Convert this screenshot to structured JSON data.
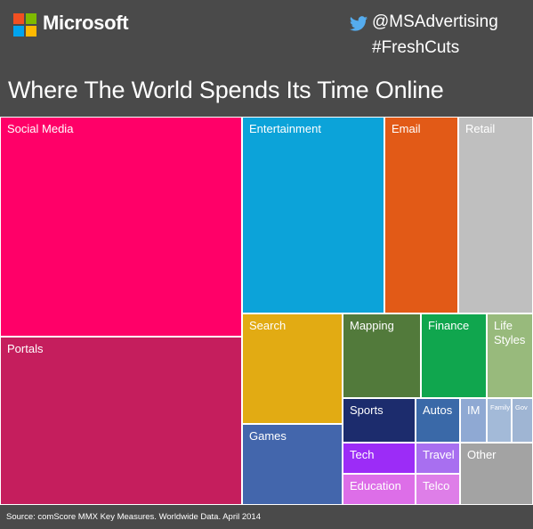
{
  "header": {
    "brand": "Microsoft",
    "twitter_handle": "@MSAdvertising",
    "hashtag": "#FreshCuts"
  },
  "colors": {
    "background": "#4a4a4a",
    "logo": [
      "#f25022",
      "#7fba00",
      "#00a4ef",
      "#ffb900"
    ],
    "twitter": "#55acee"
  },
  "icons": [
    "microsoft-logo-icon",
    "twitter-bird-icon"
  ],
  "chart_data": {
    "type": "treemap",
    "title": "Where The World Spends Its Time Online",
    "source": "Source: comScore MMX Key Measures. Worldwide Data. April 2014",
    "categories": [
      {
        "label": "Social Media",
        "color": "#ff0068"
      },
      {
        "label": "Portals",
        "color": "#c51e5d"
      },
      {
        "label": "Entertainment",
        "color": "#0ca3d9"
      },
      {
        "label": "Email",
        "color": "#e25a17"
      },
      {
        "label": "Retail",
        "color": "#bfbfbf"
      },
      {
        "label": "Search",
        "color": "#e2ab13"
      },
      {
        "label": "Games",
        "color": "#4366ac"
      },
      {
        "label": "Mapping",
        "color": "#527a3b"
      },
      {
        "label": "Finance",
        "color": "#10a64e"
      },
      {
        "label": "Life\nStyles",
        "color": "#98ba7c"
      },
      {
        "label": "Sports",
        "color": "#1c2c6d"
      },
      {
        "label": "Autos",
        "color": "#3a69a8"
      },
      {
        "label": "IM",
        "color": "#8fa9d3"
      },
      {
        "label": "Family",
        "color": "#a3bad8"
      },
      {
        "label": "Gov",
        "color": "#9fb5d3"
      },
      {
        "label": "Tech",
        "color": "#9c2cf7"
      },
      {
        "label": "Travel",
        "color": "#a86ff0"
      },
      {
        "label": "Education",
        "color": "#dd6ee8"
      },
      {
        "label": "Telco",
        "color": "#de7ee8"
      },
      {
        "label": "Other",
        "color": "#a3a3a3"
      }
    ]
  }
}
